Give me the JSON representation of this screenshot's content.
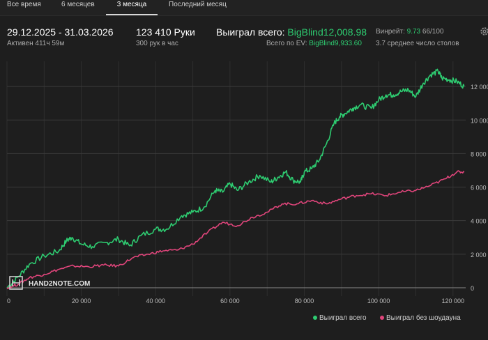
{
  "tabs": [
    {
      "label": "Все время"
    },
    {
      "label": "6 месяцев"
    },
    {
      "label": "3 месяца"
    },
    {
      "label": "Последний месяц"
    }
  ],
  "active_tab_index": 2,
  "stats": {
    "date_range": "29.12.2025 - 31.03.2026",
    "active_time": "Активен 411ч 59м",
    "hands": "123 410 Руки",
    "hands_rate": "300 рук в час",
    "won_total_label": "Выиграл всего:",
    "won_total_value": "BigBlind12,008.98",
    "ev_label": "Всего по EV:",
    "ev_value": "BigBlind9,933.60",
    "winrate_label": "Винрейт:",
    "winrate_value": "9.73",
    "winrate_extra": "66/100",
    "tables_avg": "3.7 среднее число столов"
  },
  "watermark": {
    "text": "HAND2NOTE.COM"
  },
  "icons": {
    "settings": "gear-icon",
    "logo": "hand2note-logo-icon"
  },
  "colors": {
    "won": "#2ecc71",
    "no_showdown": "#e0457b",
    "background": "#1e1e1e",
    "grid": "#3a3a3a"
  },
  "chart_data": {
    "type": "line",
    "x_ticks": [
      "0",
      "20 000",
      "40 000",
      "60 000",
      "80 000",
      "100 000",
      "120 000"
    ],
    "y_ticks": [
      "0",
      "2 000",
      "4 000",
      "6 000",
      "8 000",
      "10 000",
      "12 000"
    ],
    "xlim": [
      0,
      123410
    ],
    "ylim": [
      -500,
      13500
    ],
    "grid": true,
    "legend_position": "bottom-right",
    "series": [
      {
        "name": "Выиграл всего",
        "color": "#2ecc71",
        "x": [
          0,
          3000,
          6000,
          10000,
          14000,
          16000,
          17500,
          20000,
          23000,
          27000,
          30000,
          33000,
          36000,
          40000,
          43000,
          47000,
          50000,
          53000,
          56000,
          58000,
          60000,
          62000,
          65000,
          68000,
          71000,
          73000,
          75000,
          77000,
          79000,
          80000,
          82000,
          84000,
          86000,
          88000,
          89500,
          91000,
          93000,
          95000,
          98000,
          100000,
          102000,
          104000,
          106000,
          108000,
          110000,
          112000,
          114000,
          116000,
          117000,
          119000,
          121000,
          123000
        ],
        "y": [
          0,
          650,
          1400,
          1900,
          2200,
          2800,
          3000,
          2600,
          2450,
          2700,
          2900,
          2500,
          3100,
          3500,
          3500,
          4300,
          4500,
          4800,
          5800,
          5700,
          6200,
          5800,
          6300,
          6700,
          6300,
          6600,
          6900,
          6400,
          6300,
          6900,
          7100,
          7600,
          8600,
          9800,
          10200,
          10400,
          10700,
          10900,
          10700,
          11200,
          11500,
          11500,
          11700,
          11800,
          11400,
          12200,
          12700,
          12900,
          12500,
          12400,
          12300,
          12010
        ]
      },
      {
        "name": "Выиграл без шоудауна",
        "color": "#e0457b",
        "x": [
          0,
          3000,
          6000,
          10000,
          14000,
          18000,
          22000,
          26000,
          30000,
          34000,
          38000,
          42000,
          46000,
          50000,
          54000,
          58000,
          62000,
          66000,
          70000,
          74000,
          78000,
          82000,
          86000,
          90000,
          94000,
          98000,
          102000,
          106000,
          110000,
          114000,
          118000,
          121000,
          123000
        ],
        "y": [
          0,
          200,
          600,
          800,
          1100,
          1300,
          1250,
          1350,
          1300,
          1800,
          2000,
          2200,
          2250,
          2600,
          3300,
          3900,
          3700,
          4200,
          4500,
          5000,
          5000,
          5200,
          5000,
          5300,
          5500,
          5600,
          5500,
          5700,
          5800,
          6100,
          6500,
          6900,
          6900
        ]
      }
    ]
  }
}
